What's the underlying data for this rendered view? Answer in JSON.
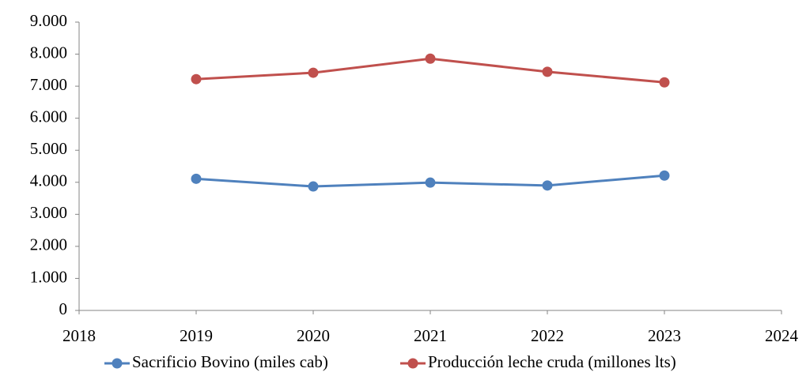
{
  "chart_data": {
    "type": "line",
    "x": [
      2019,
      2020,
      2021,
      2022,
      2023
    ],
    "series": [
      {
        "name": "Sacrificio Bovino (miles cab)",
        "color": "#4f81bd",
        "values": [
          4110,
          3870,
          3990,
          3900,
          4210
        ]
      },
      {
        "name": "Producción leche cruda (millones lts)",
        "color": "#c0504d",
        "values": [
          7220,
          7420,
          7860,
          7450,
          7120
        ]
      }
    ],
    "xlim": [
      2018,
      2024
    ],
    "xticks": [
      2018,
      2019,
      2020,
      2021,
      2022,
      2023,
      2024
    ],
    "ylim": [
      0,
      9000
    ],
    "yticks": [
      0,
      {
        "value": 1000,
        "label": "1.000"
      },
      {
        "value": 2000,
        "label": "2.000"
      },
      {
        "value": 3000,
        "label": "3.000"
      },
      {
        "value": 4000,
        "label": "4.000"
      },
      {
        "value": 5000,
        "label": "5.000"
      },
      {
        "value": 6000,
        "label": "6.000"
      },
      {
        "value": 7000,
        "label": "7.000"
      },
      {
        "value": 8000,
        "label": "8.000"
      },
      {
        "value": 9000,
        "label": "9.000"
      }
    ],
    "grid": false,
    "legend": "bottom"
  }
}
